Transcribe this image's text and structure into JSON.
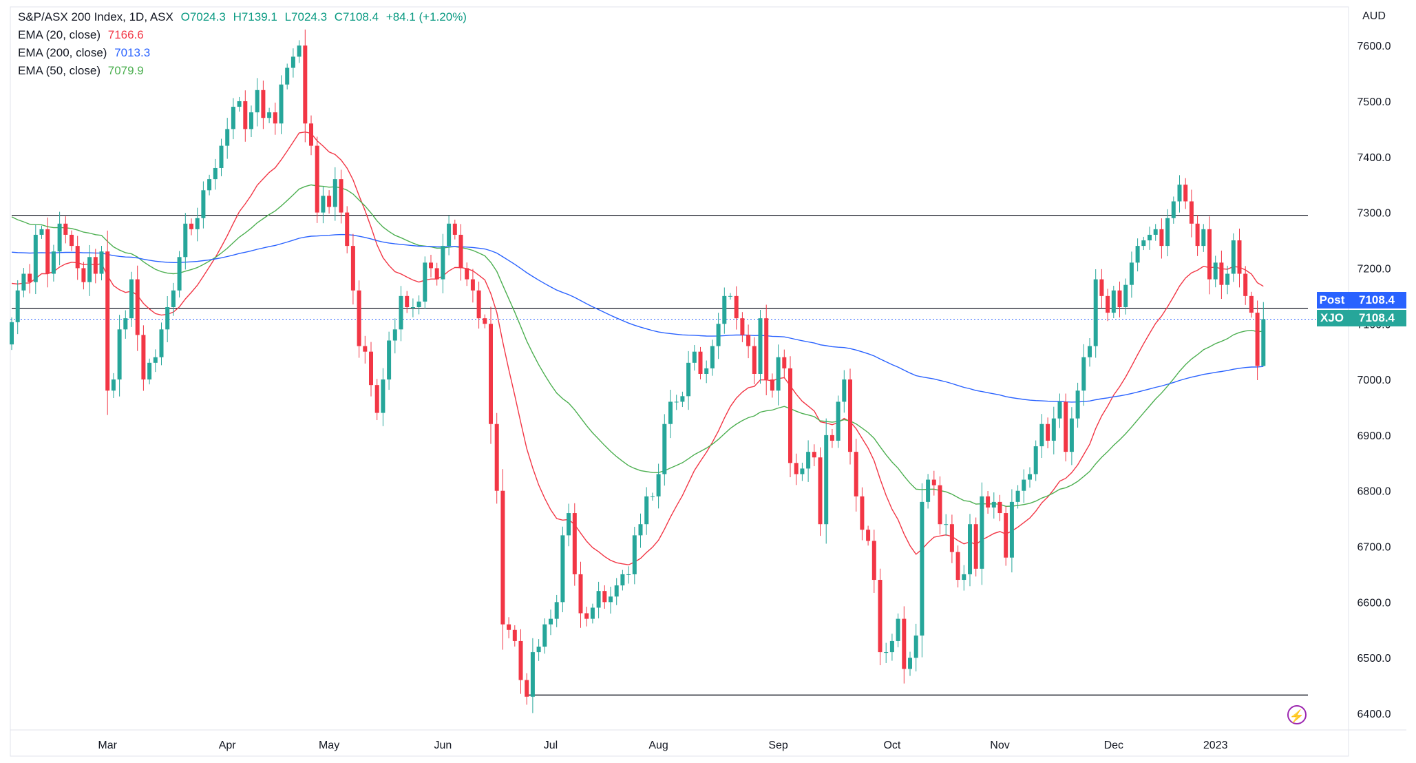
{
  "header": {
    "symbol_line": "S&P/ASX 200 Index, 1D, ASX",
    "open": "O7024.3",
    "high": "H7139.1",
    "low": "L7024.3",
    "close": "C7108.4",
    "change": "+84.1 (+1.20%)",
    "ema20_label": "EMA (20, close)",
    "ema20_value": "7166.6",
    "ema200_label": "EMA (200, close)",
    "ema200_value": "7013.3",
    "ema50_label": "EMA (50, close)",
    "ema50_value": "7079.9"
  },
  "price_tags": {
    "post_label": "Post",
    "post_value": "7108.4",
    "xjo_label": "XJO",
    "xjo_value": "7108.4"
  },
  "colors": {
    "up": "#26a69a",
    "down": "#f23645",
    "ema20": "#f23645",
    "ema50": "#4caf50",
    "ema200": "#2962ff",
    "post_tag": "#2962ff",
    "xjo_tag": "#26a69a"
  },
  "chart_data": {
    "type": "candlestick",
    "title": "S&P/ASX 200 Index, 1D, ASX",
    "currency_label": "AUD",
    "ylim": [
      6370,
      7650
    ],
    "y_ticks": [
      7600.0,
      7500.0,
      7400.0,
      7300.0,
      7200.0,
      7100.0,
      7000.0,
      6900.0,
      6800.0,
      6700.0,
      6600.0,
      6500.0,
      6400.0
    ],
    "x_labels": [
      {
        "label": "Mar",
        "bar": 16
      },
      {
        "label": "Apr",
        "bar": 36
      },
      {
        "label": "May",
        "bar": 53
      },
      {
        "label": "Jun",
        "bar": 72
      },
      {
        "label": "Jul",
        "bar": 90
      },
      {
        "label": "Aug",
        "bar": 108
      },
      {
        "label": "Sep",
        "bar": 128
      },
      {
        "label": "Oct",
        "bar": 147
      },
      {
        "label": "Nov",
        "bar": 165
      },
      {
        "label": "Dec",
        "bar": 184
      },
      {
        "label": "2023",
        "bar": 201
      }
    ],
    "closes": [
      7103,
      7160,
      7190,
      7175,
      7260,
      7270,
      7190,
      7230,
      7280,
      7260,
      7240,
      7200,
      7175,
      7220,
      7190,
      7230,
      6980,
      7000,
      7090,
      7110,
      7180,
      7080,
      7000,
      7030,
      7040,
      7090,
      7130,
      7160,
      7220,
      7280,
      7270,
      7290,
      7340,
      7360,
      7380,
      7420,
      7450,
      7490,
      7500,
      7450,
      7480,
      7520,
      7470,
      7480,
      7460,
      7530,
      7560,
      7580,
      7600,
      7460,
      7420,
      7300,
      7330,
      7310,
      7360,
      7300,
      7240,
      7160,
      7060,
      7050,
      6990,
      6940,
      7000,
      7070,
      7090,
      7150,
      7130,
      7130,
      7140,
      7210,
      7200,
      7180,
      7240,
      7280,
      7260,
      7200,
      7180,
      7160,
      7110,
      7100,
      6920,
      6800,
      6560,
      6550,
      6530,
      6460,
      6430,
      6510,
      6520,
      6560,
      6570,
      6600,
      6720,
      6760,
      6650,
      6580,
      6570,
      6590,
      6620,
      6600,
      6610,
      6630,
      6650,
      6650,
      6720,
      6740,
      6790,
      6790,
      6830,
      6920,
      6960,
      6960,
      6970,
      7030,
      7050,
      7010,
      7020,
      7060,
      7100,
      7150,
      7150,
      7110,
      7080,
      7060,
      7010,
      7110,
      7000,
      6980,
      7040,
      7020,
      6850,
      6830,
      6840,
      6870,
      6860,
      6740,
      6900,
      6890,
      6960,
      7000,
      6870,
      6790,
      6730,
      6710,
      6640,
      6510,
      6510,
      6530,
      6570,
      6480,
      6500,
      6540,
      6780,
      6820,
      6810,
      6740,
      6740,
      6690,
      6640,
      6650,
      6740,
      6660,
      6790,
      6770,
      6780,
      6760,
      6680,
      6780,
      6800,
      6820,
      6830,
      6880,
      6920,
      6890,
      6930,
      6960,
      6870,
      6930,
      6980,
      7040,
      7060,
      7180,
      7150,
      7120,
      7160,
      7130,
      7170,
      7210,
      7240,
      7250,
      7260,
      7270,
      7240,
      7290,
      7320,
      7350,
      7320,
      7280,
      7240,
      7270,
      7180,
      7210,
      7170,
      7190,
      7250,
      7190,
      7150,
      7120,
      7024.3,
      7108.4
    ],
    "ema20_last": 7166.6,
    "ema50_last": 7079.9,
    "ema200_last": 7013.3,
    "horizontal_lines": [
      7295,
      7128,
      6433
    ],
    "last_price": 7108.4
  }
}
